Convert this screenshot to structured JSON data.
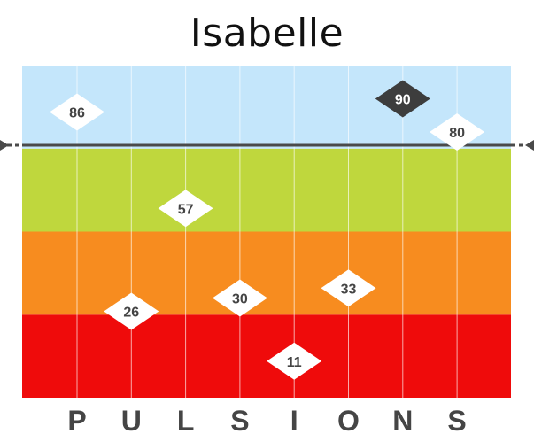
{
  "chart_data": {
    "type": "scatter",
    "title": "Isabelle",
    "categories": [
      "P",
      "U",
      "L",
      "S",
      "I",
      "O",
      "N",
      "S"
    ],
    "values": [
      86,
      26,
      57,
      30,
      11,
      33,
      90,
      80
    ],
    "highlight_index": 6,
    "ylim": [
      0,
      100
    ],
    "bands": [
      {
        "from": 0,
        "to": 25,
        "color": "#ef0b0b"
      },
      {
        "from": 25,
        "to": 50,
        "color": "#f78c1f"
      },
      {
        "from": 50,
        "to": 75,
        "color": "#bfd73d"
      },
      {
        "from": 75,
        "to": 100,
        "color": "#c4e6fb"
      }
    ],
    "threshold": 76,
    "grid": true,
    "legend": "none",
    "colors": {
      "marker": "#ffffff",
      "marker_text": "#444444",
      "highlight_marker": "#3d3d3d",
      "highlight_text": "#ffffff",
      "threshold_line": "#4a4a4a",
      "category_text": "#454545"
    }
  }
}
